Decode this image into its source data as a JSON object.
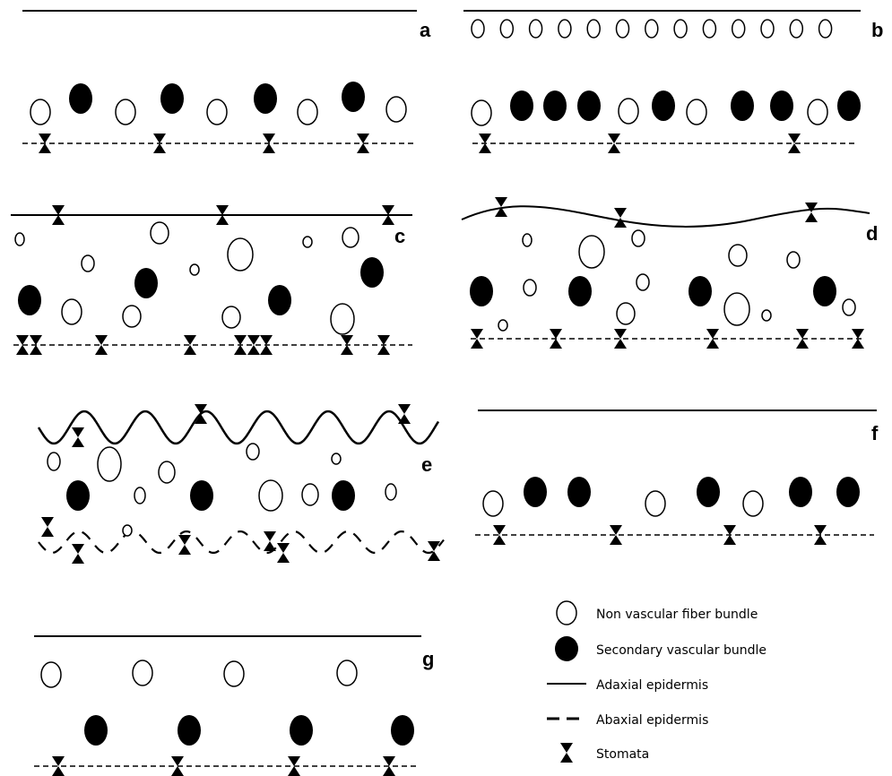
{
  "panels": [
    {
      "label": "a"
    },
    {
      "label": "b"
    },
    {
      "label": "c"
    },
    {
      "label": "d"
    },
    {
      "label": "e"
    },
    {
      "label": "f"
    },
    {
      "label": "g"
    }
  ],
  "legend": [
    {
      "label": "Non vascular fiber bundle"
    },
    {
      "label": "Secondary vascular bundle"
    },
    {
      "label": "Adaxial epidermis"
    },
    {
      "label": "Abaxial epidermis"
    },
    {
      "label": "Stomata"
    }
  ]
}
